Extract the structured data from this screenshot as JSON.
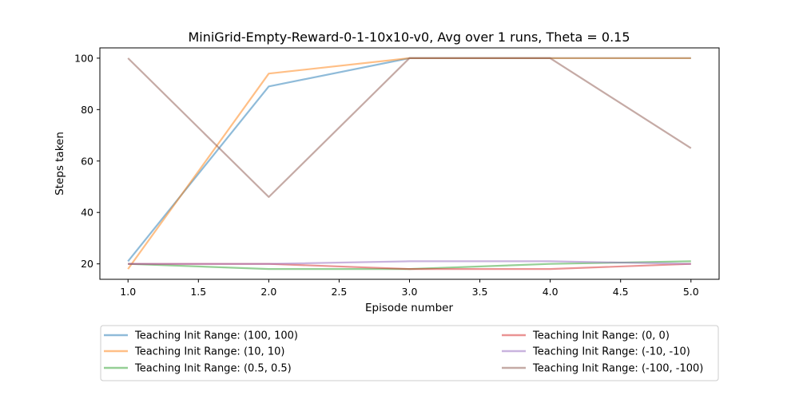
{
  "chart_data": {
    "type": "line",
    "title": "MiniGrid-Empty-Reward-0-1-10x10-v0, Avg over 1 runs, Theta = 0.15",
    "xlabel": "Episode number",
    "ylabel": "Steps taken",
    "x": [
      1,
      2,
      3,
      4,
      5
    ],
    "xlim": [
      0.8,
      5.2
    ],
    "ylim": [
      14,
      104
    ],
    "xticks": [
      1.0,
      1.5,
      2.0,
      2.5,
      3.0,
      3.5,
      4.0,
      4.5,
      5.0
    ],
    "xtick_labels": [
      "1.0",
      "1.5",
      "2.0",
      "2.5",
      "3.0",
      "3.5",
      "4.0",
      "4.5",
      "5.0"
    ],
    "yticks": [
      20,
      40,
      60,
      80,
      100
    ],
    "ytick_labels": [
      "20",
      "40",
      "60",
      "80",
      "100"
    ],
    "grid": false,
    "legend_position": "below",
    "series": [
      {
        "name": "Teaching Init Range: (100, 100)",
        "color": "#1f77b4",
        "values": [
          21,
          89,
          100,
          100,
          100
        ]
      },
      {
        "name": "Teaching Init Range: (10, 10)",
        "color": "#ff7f0e",
        "values": [
          18,
          94,
          100,
          100,
          100
        ]
      },
      {
        "name": "Teaching Init Range: (0.5, 0.5)",
        "color": "#2ca02c",
        "values": [
          20,
          18,
          18,
          20,
          21
        ]
      },
      {
        "name": "Teaching Init Range: (0, 0)",
        "color": "#d62728",
        "values": [
          20,
          20,
          18,
          18,
          20
        ]
      },
      {
        "name": "Teaching Init Range: (-10, -10)",
        "color": "#9467bd",
        "values": [
          20,
          20,
          21,
          21,
          20
        ]
      },
      {
        "name": "Teaching Init Range: (-100, -100)",
        "color": "#8c564b",
        "values": [
          100,
          46,
          100,
          100,
          65
        ]
      }
    ]
  }
}
